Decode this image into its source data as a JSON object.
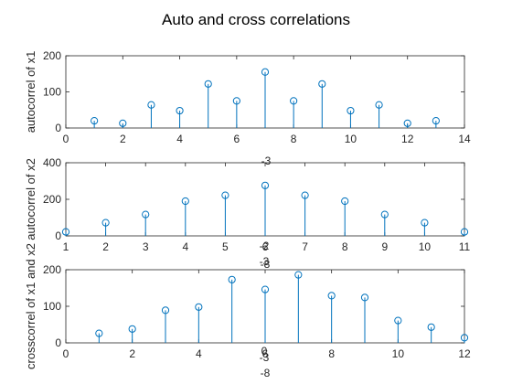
{
  "figure_title": "Auto and cross correlations",
  "colors": {
    "stem": "#0072BD",
    "axis": "#262626",
    "background": "#ffffff"
  },
  "chart_data": [
    {
      "type": "stem",
      "ylabel": "autocorrel of x1",
      "xlim": [
        0,
        14
      ],
      "ylim": [
        0,
        200
      ],
      "xticks": [
        0,
        2,
        4,
        6,
        8,
        10,
        12,
        14
      ],
      "yticks": [
        0,
        100,
        200
      ],
      "x": [
        1,
        2,
        3,
        4,
        5,
        6,
        7,
        8,
        9,
        10,
        11,
        12,
        13
      ],
      "values": [
        20,
        13,
        64,
        48,
        122,
        75,
        155,
        75,
        122,
        48,
        64,
        13,
        20
      ],
      "overlap_labels": [
        "-3"
      ]
    },
    {
      "type": "stem",
      "ylabel": "autocorrel of x2",
      "xlim": [
        1,
        11
      ],
      "ylim": [
        0,
        400
      ],
      "xticks": [
        1,
        2,
        3,
        4,
        5,
        6,
        7,
        8,
        9,
        10,
        11
      ],
      "yticks": [
        0,
        200,
        400
      ],
      "x": [
        1,
        2,
        3,
        4,
        5,
        6,
        7,
        8,
        9,
        10,
        11
      ],
      "values": [
        22,
        72,
        117,
        190,
        222,
        276,
        222,
        190,
        117,
        72,
        22
      ],
      "overlap_labels": [
        "-2",
        "-3",
        "-8"
      ]
    },
    {
      "type": "stem",
      "ylabel": "crosscorrel of x1 and x2",
      "xlim": [
        0,
        12
      ],
      "ylim": [
        0,
        200
      ],
      "xticks": [
        0,
        2,
        4,
        6,
        8,
        10,
        12
      ],
      "yticks": [
        0,
        100,
        200
      ],
      "x": [
        1,
        2,
        3,
        4,
        5,
        6,
        7,
        8,
        9,
        10,
        11,
        12
      ],
      "values": [
        26,
        38,
        89,
        98,
        173,
        146,
        186,
        129,
        124,
        61,
        43,
        14
      ],
      "overlap_labels": [
        "0",
        "-3",
        "-8"
      ]
    }
  ]
}
